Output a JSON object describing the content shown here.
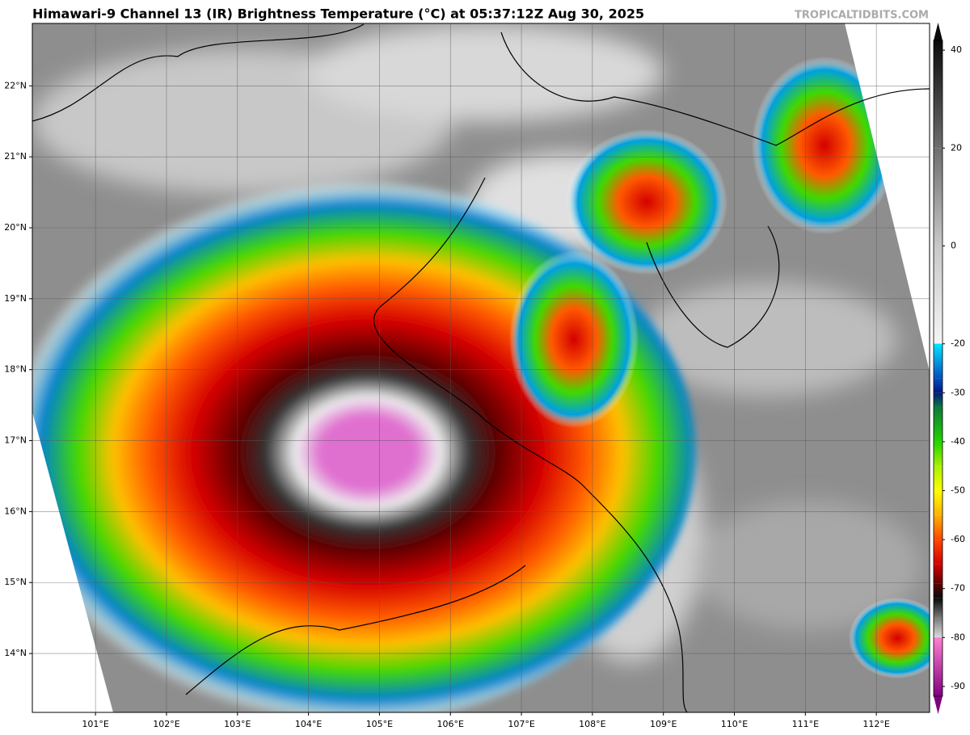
{
  "header": {
    "title": "Himawari-9 Channel 13 (IR) Brightness Temperature (°C) at 05:37:12Z Aug 30, 2025",
    "credit": "TROPICALTIDBITS.COM"
  },
  "map": {
    "xlim": [
      100.11,
      112.75
    ],
    "ylim": [
      13.17,
      22.88
    ],
    "xticks": [
      {
        "value": 101,
        "label": "101°E"
      },
      {
        "value": 102,
        "label": "102°E"
      },
      {
        "value": 103,
        "label": "103°E"
      },
      {
        "value": 104,
        "label": "104°E"
      },
      {
        "value": 105,
        "label": "105°E"
      },
      {
        "value": 106,
        "label": "106°E"
      },
      {
        "value": 107,
        "label": "107°E"
      },
      {
        "value": 108,
        "label": "108°E"
      },
      {
        "value": 109,
        "label": "109°E"
      },
      {
        "value": 110,
        "label": "110°E"
      },
      {
        "value": 111,
        "label": "111°E"
      },
      {
        "value": 112,
        "label": "112°E"
      }
    ],
    "yticks": [
      {
        "value": 14,
        "label": "14°N"
      },
      {
        "value": 15,
        "label": "15°N"
      },
      {
        "value": 16,
        "label": "16°N"
      },
      {
        "value": 17,
        "label": "17°N"
      },
      {
        "value": 18,
        "label": "18°N"
      },
      {
        "value": 19,
        "label": "19°N"
      },
      {
        "value": 20,
        "label": "20°N"
      },
      {
        "value": 21,
        "label": "21°N"
      },
      {
        "value": 22,
        "label": "22°N"
      }
    ],
    "grid": true
  },
  "colorbar": {
    "lim": [
      -92,
      42
    ],
    "ticks": [
      40,
      20,
      0,
      -20,
      -30,
      -40,
      -50,
      -60,
      -70,
      -80,
      -90
    ],
    "stops": [
      {
        "value": 42,
        "color": "#0a0a0a"
      },
      {
        "value": 20,
        "color": "#6e6e6e"
      },
      {
        "value": 0,
        "color": "#c8c8c8"
      },
      {
        "value": -19.9,
        "color": "#f5f5f5"
      },
      {
        "value": -20,
        "color": "#00e5ff"
      },
      {
        "value": -27,
        "color": "#0050c0"
      },
      {
        "value": -30,
        "color": "#001a80"
      },
      {
        "value": -33,
        "color": "#0c7a3c"
      },
      {
        "value": -40,
        "color": "#22d400"
      },
      {
        "value": -45,
        "color": "#a8f000"
      },
      {
        "value": -50,
        "color": "#ffff00"
      },
      {
        "value": -55,
        "color": "#ffb000"
      },
      {
        "value": -60,
        "color": "#ff4800"
      },
      {
        "value": -65,
        "color": "#d40000"
      },
      {
        "value": -69,
        "color": "#600000"
      },
      {
        "value": -72,
        "color": "#0a0a0a"
      },
      {
        "value": -76,
        "color": "#7a7a7a"
      },
      {
        "value": -79.9,
        "color": "#d8d8d8"
      },
      {
        "value": -80,
        "color": "#ff80d0"
      },
      {
        "value": -92,
        "color": "#800080"
      }
    ]
  }
}
